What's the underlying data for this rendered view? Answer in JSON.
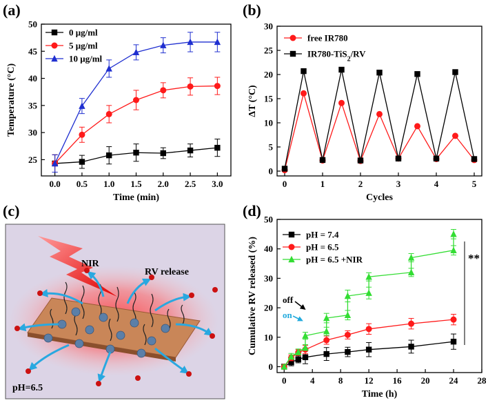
{
  "colors": {
    "black": "#000000",
    "red": "#ff1a1a",
    "blue": "#1f2fd0",
    "green": "#33dd33",
    "cyan": "#22aadd",
    "panel_bg": "#dcd4e6"
  },
  "panel_c": {
    "label": "(c)",
    "nir_label": "NIR",
    "release_label": "RV release",
    "ph_label": "pH=6.5"
  },
  "chart_data": [
    {
      "panel": "(a)",
      "type": "line",
      "xlabel": "Time (min)",
      "ylabel": "Temperature (°C)",
      "xlim": [
        -0.25,
        3.25
      ],
      "ylim": [
        22,
        50
      ],
      "xticks": [
        "0.0",
        "0.5",
        "1.0",
        "1.5",
        "2.0",
        "2.5",
        "3.0"
      ],
      "yticks": [
        "25",
        "30",
        "35",
        "40",
        "45",
        "50"
      ],
      "x": [
        0,
        0.5,
        1.0,
        1.5,
        2.0,
        2.5,
        3.0
      ],
      "legend_position": "top-left",
      "series": [
        {
          "name": "0  μg/ml",
          "color": "#000000",
          "marker": "square",
          "values": [
            24.3,
            24.6,
            25.8,
            26.3,
            26.2,
            26.7,
            27.2
          ],
          "errors": [
            1.6,
            1.2,
            1.6,
            1.6,
            1.0,
            1.2,
            1.6
          ]
        },
        {
          "name": "5  μg/ml",
          "color": "#ff1a1a",
          "marker": "circle",
          "values": [
            24.3,
            29.6,
            33.4,
            36.0,
            37.8,
            38.5,
            38.6
          ],
          "errors": [
            1.6,
            1.4,
            1.6,
            1.8,
            1.4,
            1.6,
            1.6
          ]
        },
        {
          "name": "10  μg/ml",
          "color": "#1f2fd0",
          "marker": "triangle",
          "values": [
            24.3,
            34.9,
            41.8,
            44.8,
            46.1,
            46.7,
            46.7
          ],
          "errors": [
            1.6,
            1.4,
            1.6,
            1.4,
            1.4,
            1.8,
            1.8
          ]
        }
      ]
    },
    {
      "panel": "(b)",
      "type": "line",
      "xlabel": "Cycles",
      "ylabel": "ΔT (°C)",
      "xlim": [
        -0.2,
        5.2
      ],
      "ylim": [
        -1,
        30
      ],
      "xticks": [
        "0",
        "1",
        "2",
        "3",
        "4",
        "5"
      ],
      "yticks": [
        "0",
        "5",
        "10",
        "15",
        "20",
        "25",
        "30"
      ],
      "x": [
        0,
        0.5,
        1,
        1.5,
        2,
        2.5,
        3,
        3.5,
        4,
        4.5,
        5
      ],
      "legend_position": "top-left",
      "series": [
        {
          "name": "free IR780",
          "color": "#ff1a1a",
          "marker": "circle",
          "values": [
            0.2,
            16.1,
            2.2,
            14.1,
            2.1,
            11.8,
            2.6,
            9.3,
            2.5,
            7.3,
            2.3
          ]
        },
        {
          "name": "IR780-TiS2/RV",
          "color": "#000000",
          "marker": "square",
          "values": [
            0.5,
            20.7,
            2.3,
            21.0,
            2.2,
            20.4,
            2.6,
            20.1,
            2.6,
            20.5,
            2.5
          ]
        }
      ]
    },
    {
      "panel": "(d)",
      "type": "line",
      "xlabel": "Time (h)",
      "ylabel": "Cumulative RV released (%)",
      "xlim": [
        -1,
        28
      ],
      "ylim": [
        -2,
        50
      ],
      "xticks": [
        "0",
        "4",
        "8",
        "12",
        "16",
        "20",
        "24",
        "28"
      ],
      "yticks": [
        "0",
        "10",
        "20",
        "30",
        "40",
        "50"
      ],
      "legend_position": "top-left",
      "annotations": {
        "off": "off",
        "on": "on",
        "significance": "**"
      },
      "series": [
        {
          "name": "pH = 7.4",
          "color": "#000000",
          "marker": "square",
          "x": [
            0,
            1,
            2,
            3,
            6,
            9,
            12,
            18,
            24
          ],
          "values": [
            0,
            1.5,
            2.5,
            3.2,
            4.3,
            5.0,
            5.8,
            6.8,
            8.5
          ],
          "errors": [
            0.6,
            1.2,
            1.2,
            2.2,
            2.2,
            1.6,
            2.4,
            2.2,
            2.6
          ]
        },
        {
          "name": "pH = 6.5",
          "color": "#ff1a1a",
          "marker": "circle",
          "x": [
            0,
            1,
            2,
            3,
            6,
            9,
            12,
            18,
            24
          ],
          "values": [
            0,
            3.0,
            4.8,
            5.8,
            9.0,
            10.8,
            12.8,
            14.6,
            16.0
          ],
          "errors": [
            0.6,
            1.0,
            1.0,
            1.4,
            1.4,
            1.4,
            1.8,
            1.8,
            1.8
          ]
        },
        {
          "name": "pH = 6.5 +NIR",
          "color": "#33dd33",
          "marker": "triangle",
          "x": [
            0,
            1,
            2,
            3,
            3,
            6,
            6,
            9,
            9,
            12,
            12,
            18,
            18,
            24,
            24
          ],
          "values": [
            0,
            3.5,
            5.0,
            6.5,
            10.5,
            12.0,
            16.5,
            17.5,
            24.0,
            25.0,
            30.5,
            32.0,
            37.0,
            39.5,
            45.0
          ],
          "errors": [
            0.6,
            1.0,
            1.0,
            1.0,
            1.2,
            1.4,
            1.6,
            1.6,
            2.0,
            2.0,
            1.4,
            1.4,
            1.4,
            1.6,
            1.6
          ]
        }
      ]
    }
  ]
}
